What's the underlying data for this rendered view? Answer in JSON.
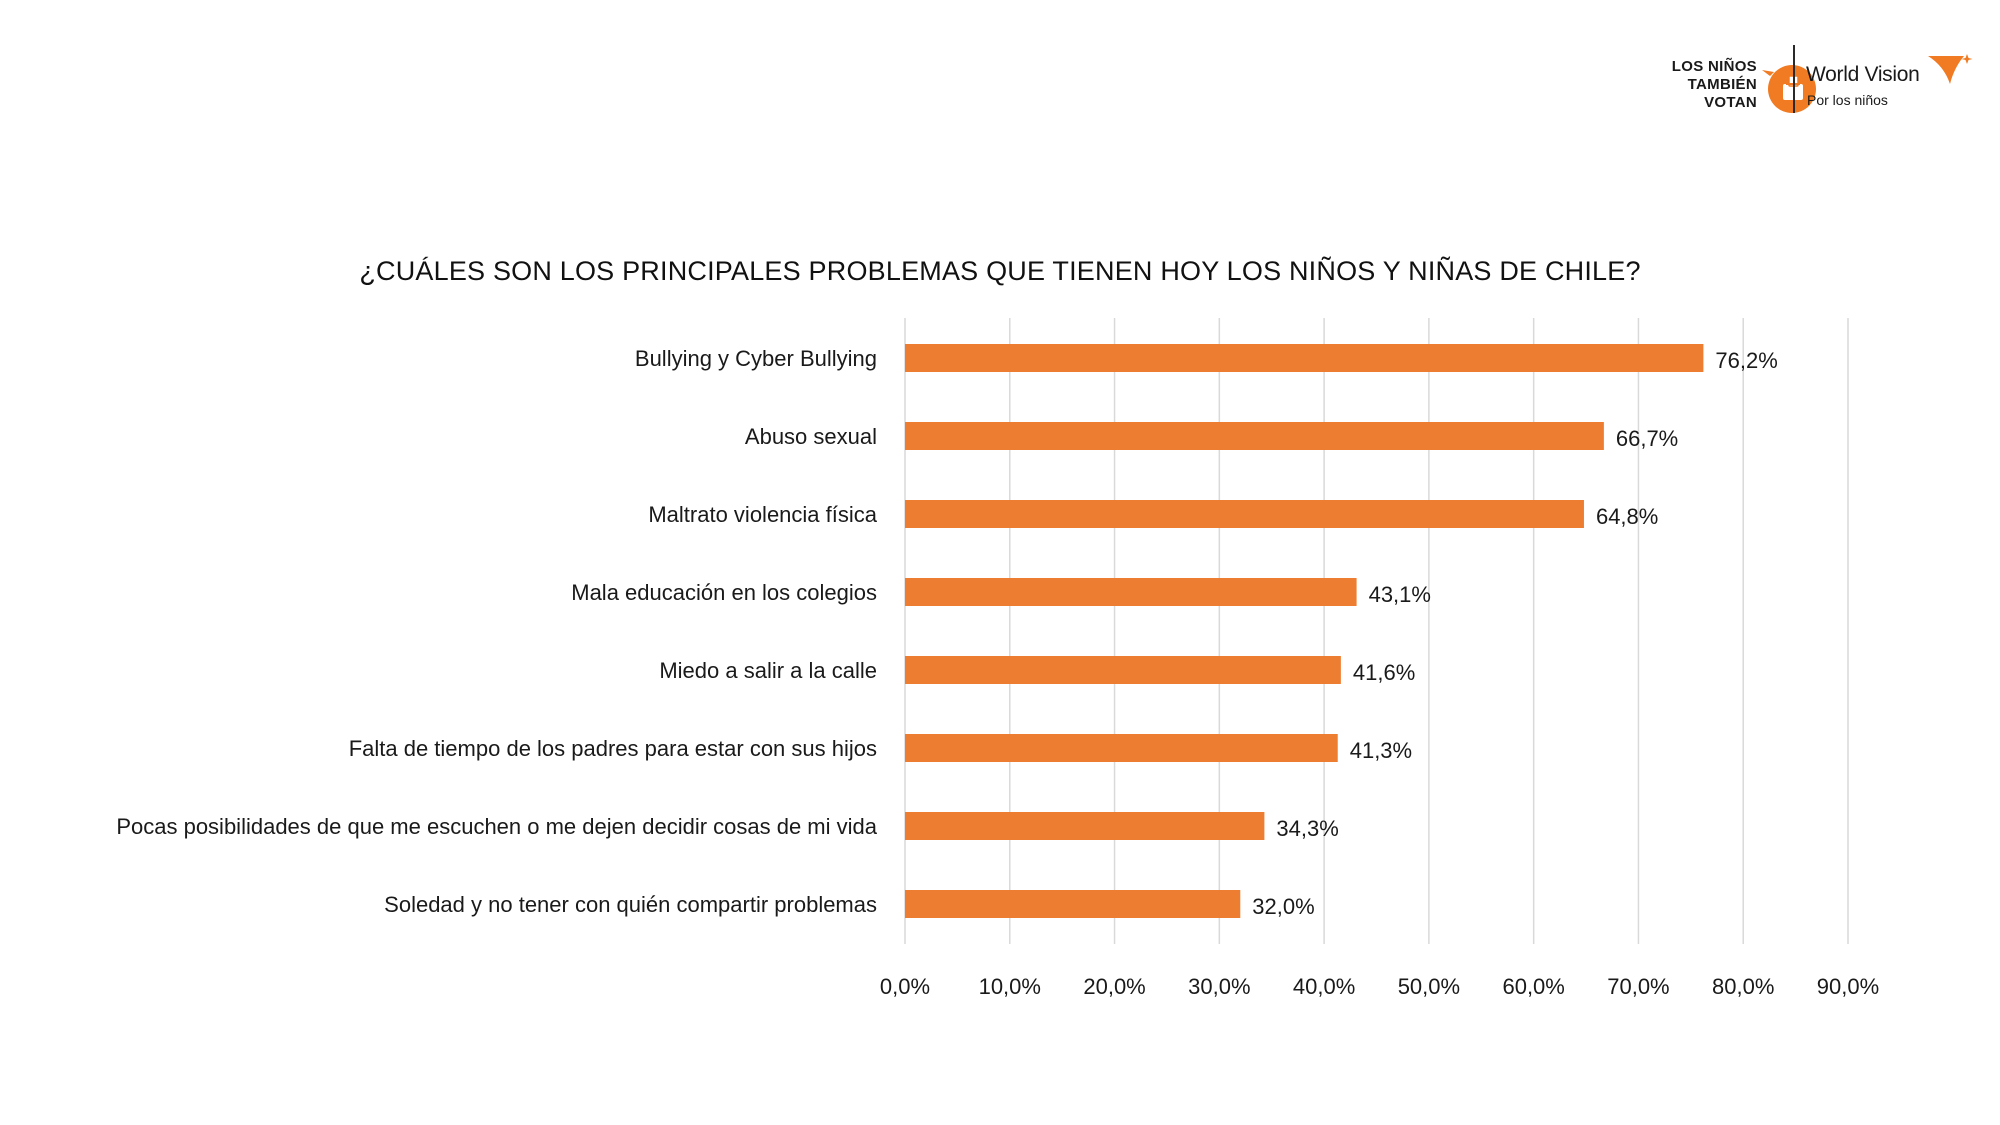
{
  "logos": {
    "campaign_lines": [
      "LOS NIÑOS",
      "TAMBIÉN",
      "VOTAN"
    ],
    "brand_name": "World Vision",
    "brand_tagline": "Por los niños"
  },
  "colors": {
    "bar": "#ED7D31",
    "grid": "#D9D9D9",
    "text": "#1A1A1A",
    "logo_orange": "#F07B22"
  },
  "chart_data": {
    "type": "bar",
    "orientation": "horizontal",
    "title": "¿CUÁLES SON LOS PRINCIPALES PROBLEMAS QUE TIENEN HOY LOS NIÑOS Y NIÑAS DE CHILE?",
    "xlabel": "",
    "ylabel": "",
    "xlim": [
      0,
      90
    ],
    "ticks": [
      0,
      10,
      20,
      30,
      40,
      50,
      60,
      70,
      80,
      90
    ],
    "tick_labels": [
      "0,0%",
      "10,0%",
      "20,0%",
      "30,0%",
      "40,0%",
      "50,0%",
      "60,0%",
      "70,0%",
      "80,0%",
      "90,0%"
    ],
    "grid": true,
    "legend": "none",
    "categories": [
      "Bullying y Cyber Bullying",
      "Abuso sexual",
      "Maltrato violencia física",
      "Mala educación en los colegios",
      "Miedo a salir a la calle",
      "Falta de tiempo de los padres para estar con sus hijos",
      "Pocas posibilidades de que me escuchen o me dejen decidir cosas de mi vida",
      "Soledad y no tener con quién compartir problemas"
    ],
    "values": [
      76.2,
      66.7,
      64.8,
      43.1,
      41.6,
      41.3,
      34.3,
      32.0
    ],
    "value_labels": [
      "76,2%",
      "66,7%",
      "64,8%",
      "43,1%",
      "41,6%",
      "41,3%",
      "34,3%",
      "32,0%"
    ]
  }
}
